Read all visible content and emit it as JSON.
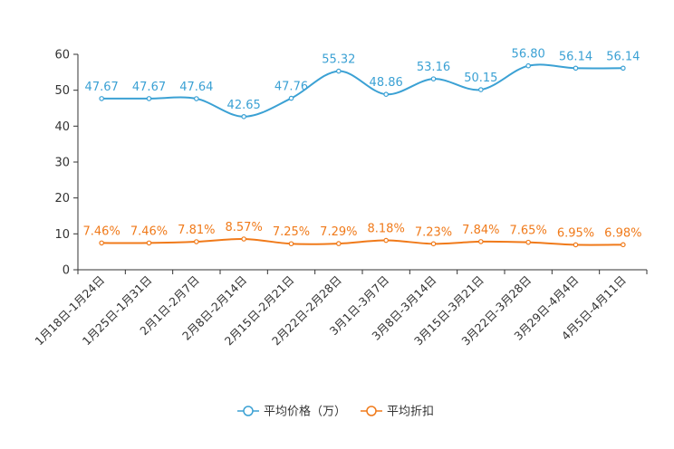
{
  "chart_data": {
    "type": "line",
    "categories": [
      "1月18日-1月24日",
      "1月25日-1月31日",
      "2月1日-2月7日",
      "2月8日-2月14日",
      "2月15日-2月21日",
      "2月22日-2月28日",
      "3月1日-3月7日",
      "3月8日-3月14日",
      "3月15日-3月21日",
      "3月22日-3月28日",
      "3月29日-4月4日",
      "4月5日-4月11日"
    ],
    "ylim": [
      0,
      60
    ],
    "yticks": [
      0,
      10,
      20,
      30,
      40,
      50,
      60
    ],
    "smooth": true,
    "series": [
      {
        "name": "平均价格（万）",
        "color": "#3ba1d4",
        "values": [
          47.67,
          47.67,
          47.64,
          42.65,
          47.76,
          55.32,
          48.86,
          53.16,
          50.15,
          56.8,
          56.14,
          56.14
        ],
        "labels": [
          "47.67",
          "47.67",
          "47.64",
          "42.65",
          "47.76",
          "55.32",
          "48.86",
          "53.16",
          "50.15",
          "56.80",
          "56.14",
          "56.14"
        ]
      },
      {
        "name": "平均折扣",
        "color": "#f07a1a",
        "values": [
          7.46,
          7.46,
          7.81,
          8.57,
          7.25,
          7.29,
          8.18,
          7.23,
          7.84,
          7.65,
          6.95,
          6.98
        ],
        "labels": [
          "7.46%",
          "7.46%",
          "7.81%",
          "8.57%",
          "7.25%",
          "7.29%",
          "8.18%",
          "7.23%",
          "7.84%",
          "7.65%",
          "6.95%",
          "6.98%"
        ]
      }
    ],
    "legend_position": "bottom-center"
  }
}
